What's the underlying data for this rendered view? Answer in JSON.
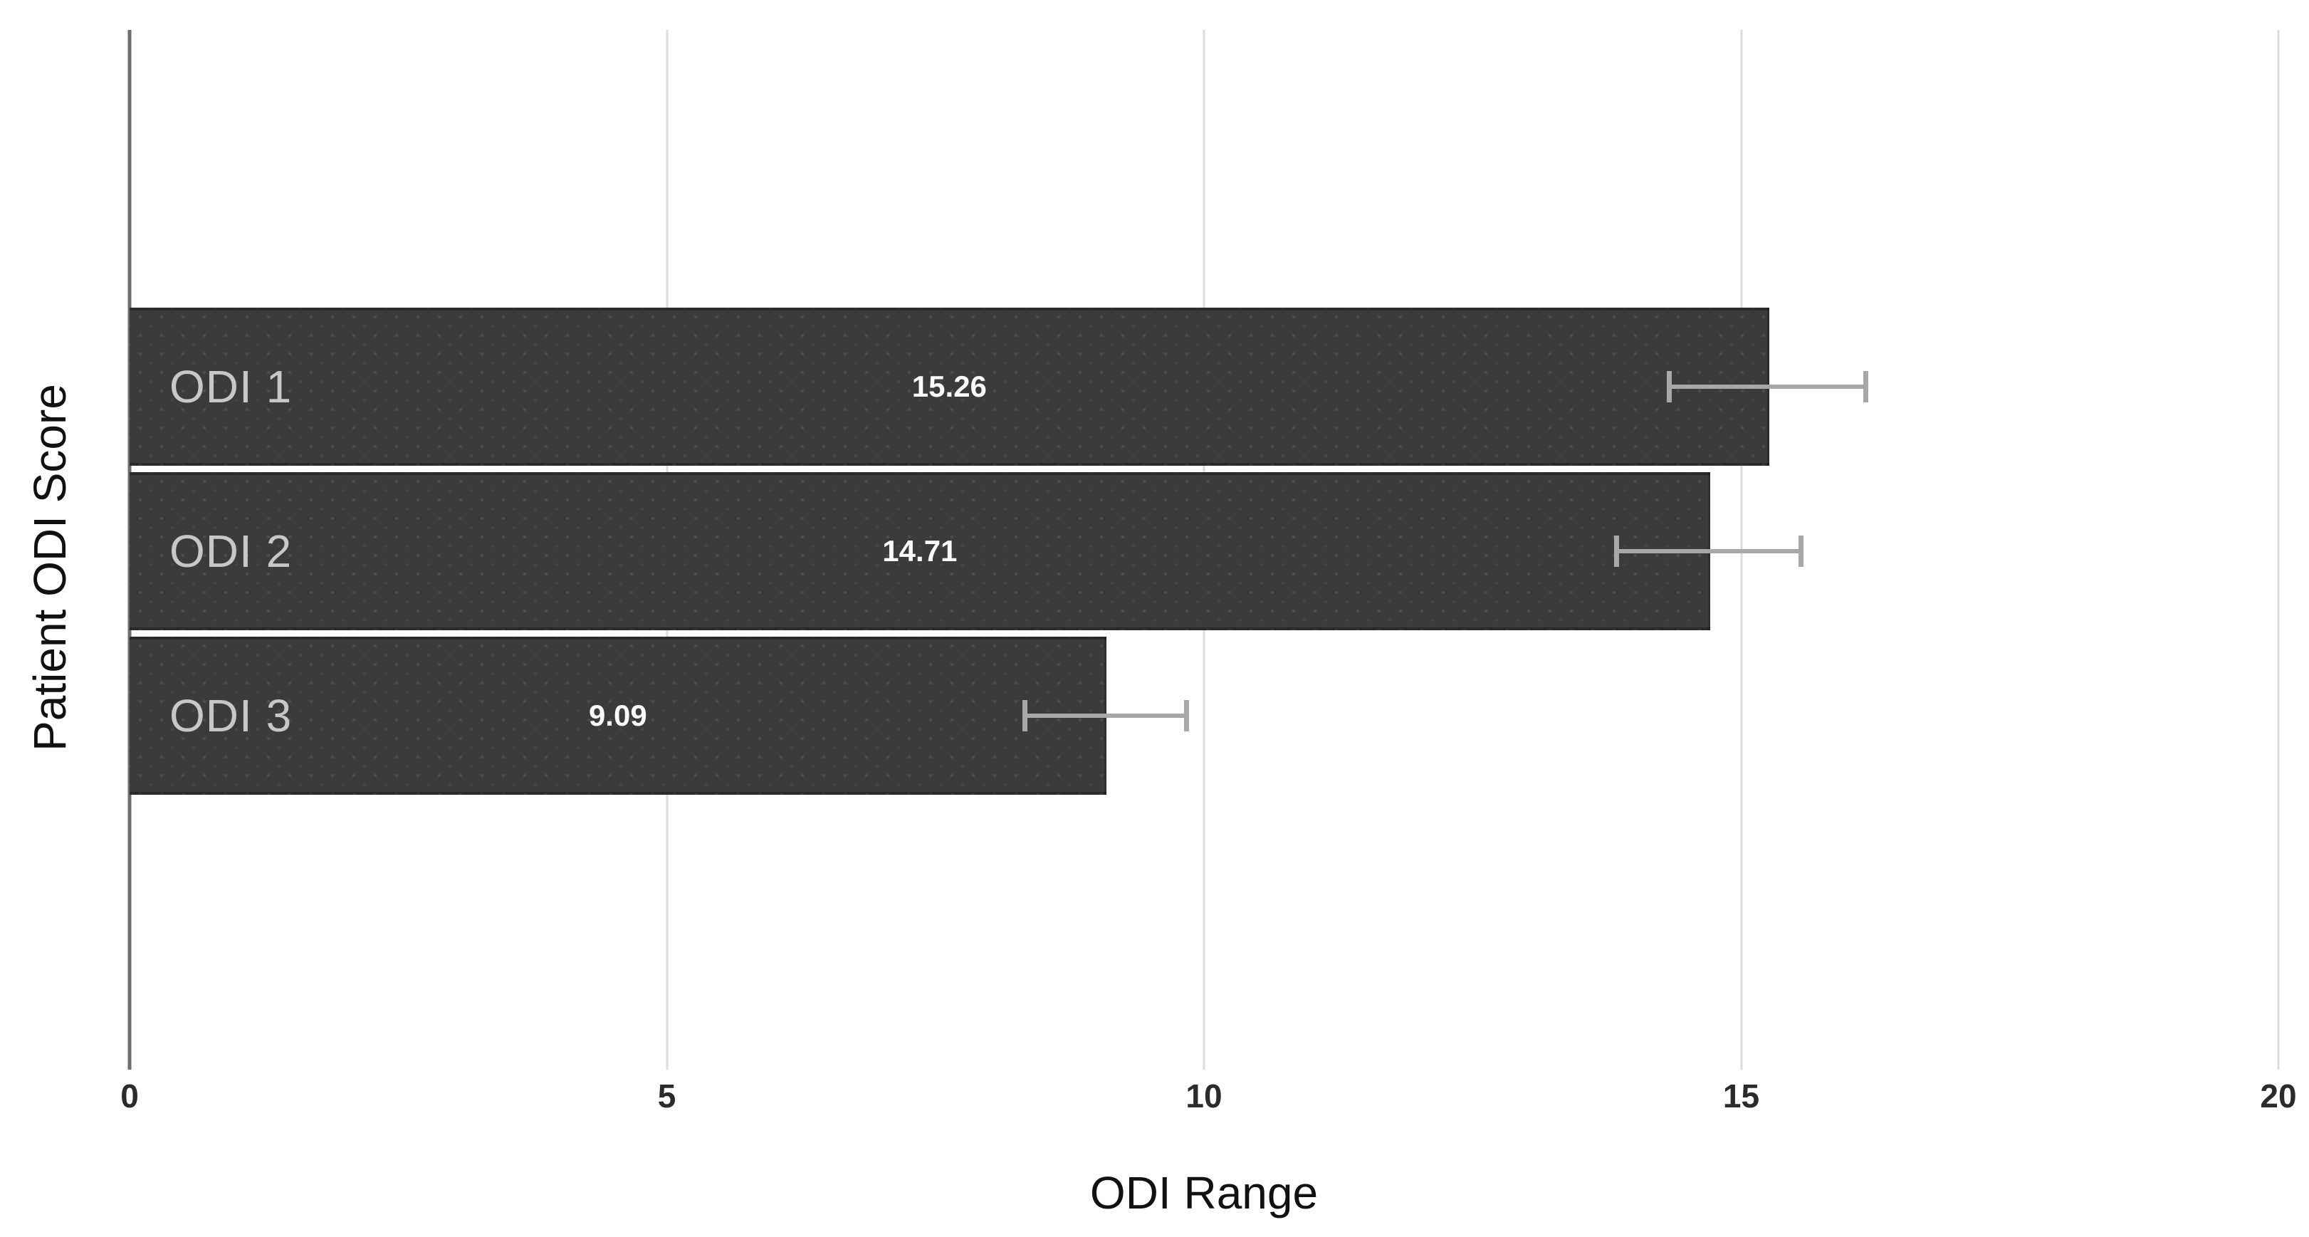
{
  "chart_data": {
    "type": "bar",
    "orientation": "horizontal",
    "xlabel": "ODI Range",
    "ylabel": "Patient ODI Score",
    "categories": [
      "ODI 1",
      "ODI 2",
      "ODI 3"
    ],
    "values": [
      15.26,
      14.71,
      9.09
    ],
    "error_bars": [
      {
        "low": 14.31,
        "high": 16.18
      },
      {
        "low": 13.82,
        "high": 15.58
      },
      {
        "low": 8.31,
        "high": 9.86
      }
    ],
    "xlim": [
      0,
      20
    ],
    "xticks": [
      0,
      5,
      10,
      15,
      20
    ],
    "xtick_labels": [
      "0",
      "5",
      "10",
      "15",
      "20"
    ],
    "grid": "vertical-gridlines-on",
    "legend": "none"
  },
  "appearance": {
    "background": "#ffffff",
    "bar_color": "#3b3b3c",
    "category_label_color": "#c7c7c7",
    "value_label_color": "#fafafa",
    "gridline_color": "#dcdcdc",
    "axis_line_color": "#6f6f6f",
    "error_bar_color": "#a8a8a8",
    "tick_label_color": "#2b2b2b",
    "axis_title_color": "#111111"
  }
}
